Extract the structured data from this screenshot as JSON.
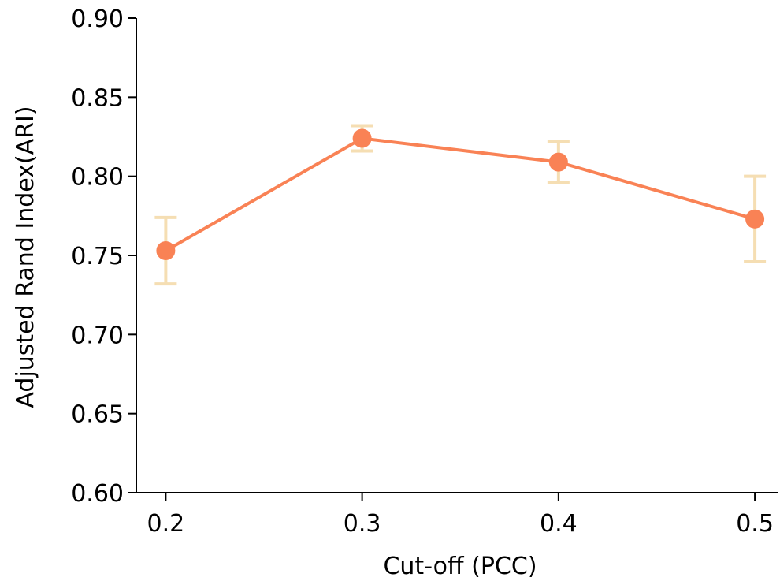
{
  "chart_data": {
    "type": "line",
    "xlabel": "Cut-off (PCC)",
    "ylabel": "Adjusted Rand Index(ARI)",
    "x": [
      0.2,
      0.3,
      0.4,
      0.5
    ],
    "x_tick_labels": [
      "0.2",
      "0.3",
      "0.4",
      "0.5"
    ],
    "xlim": [
      0.185,
      0.512
    ],
    "ylim": [
      0.6,
      0.9
    ],
    "y_ticks": [
      0.6,
      0.65,
      0.7,
      0.75,
      0.8,
      0.85,
      0.9
    ],
    "y_tick_labels": [
      "0.60",
      "0.65",
      "0.70",
      "0.75",
      "0.80",
      "0.85",
      "0.90"
    ],
    "series": [
      {
        "values": [
          0.753,
          0.824,
          0.809,
          0.773
        ],
        "error_low": [
          0.732,
          0.816,
          0.796,
          0.746
        ],
        "error_high": [
          0.774,
          0.832,
          0.822,
          0.8
        ],
        "color": "#f98255",
        "error_color": "#f5deb3"
      }
    ],
    "grid": false,
    "legend": "none"
  }
}
